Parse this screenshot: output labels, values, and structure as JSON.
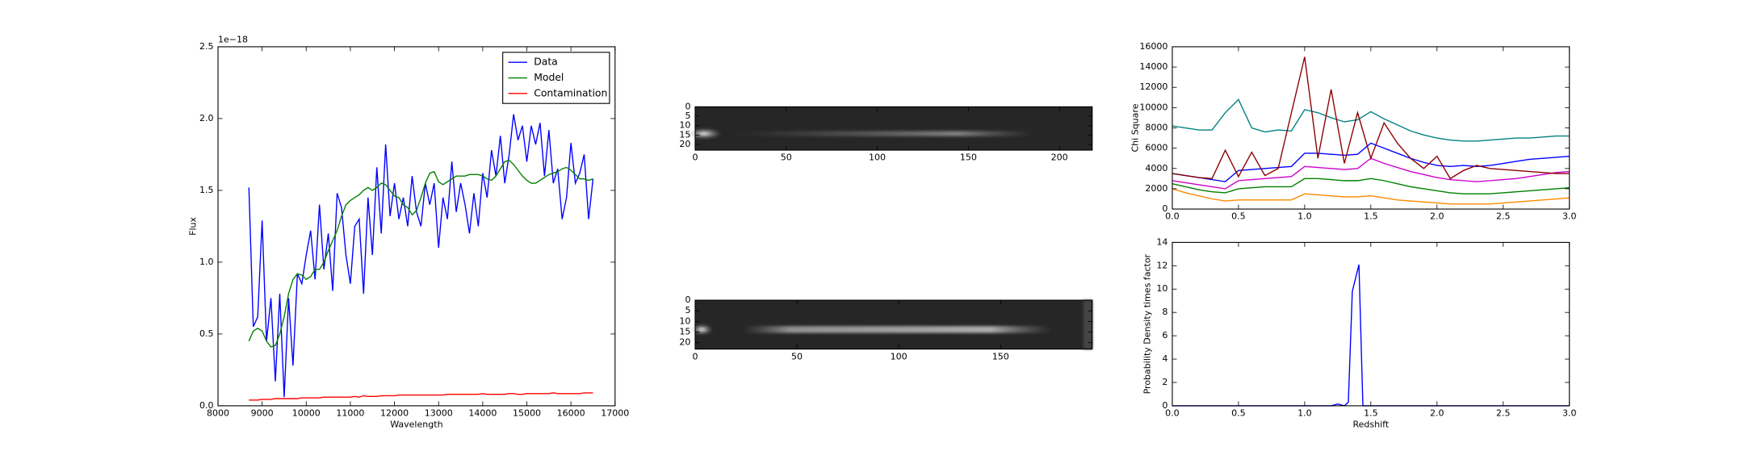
{
  "chart_data": [
    {
      "type": "line",
      "x_label": "Wavelength",
      "y_label": "Flux",
      "y_offset_label": "1e−18",
      "x": [
        8700,
        8800,
        8900,
        9000,
        9100,
        9200,
        9300,
        9400,
        9500,
        9600,
        9700,
        9800,
        9900,
        10000,
        10100,
        10200,
        10300,
        10400,
        10500,
        10600,
        10700,
        10800,
        10900,
        11000,
        11100,
        11200,
        11300,
        11400,
        11500,
        11600,
        11700,
        11800,
        11900,
        12000,
        12100,
        12200,
        12300,
        12400,
        12500,
        12600,
        12700,
        12800,
        12900,
        13000,
        13100,
        13200,
        13300,
        13400,
        13500,
        13600,
        13700,
        13800,
        13900,
        14000,
        14100,
        14200,
        14300,
        14400,
        14500,
        14600,
        14700,
        14800,
        14900,
        15000,
        15100,
        15200,
        15300,
        15400,
        15500,
        15600,
        15700,
        15800,
        15900,
        16000,
        16100,
        16200,
        16300,
        16400,
        16500
      ],
      "series": [
        {
          "name": "Data",
          "color": "#0000ff",
          "values": [
            1.52,
            0.55,
            0.62,
            1.29,
            0.45,
            0.75,
            0.17,
            0.78,
            0.06,
            0.75,
            0.28,
            0.92,
            0.85,
            1.05,
            1.22,
            0.88,
            1.4,
            0.95,
            1.2,
            0.8,
            1.48,
            1.38,
            1.05,
            0.85,
            1.25,
            1.3,
            0.78,
            1.45,
            1.05,
            1.66,
            1.2,
            1.82,
            1.32,
            1.55,
            1.3,
            1.45,
            1.25,
            1.6,
            1.35,
            1.25,
            1.55,
            1.4,
            1.55,
            1.1,
            1.45,
            1.3,
            1.7,
            1.35,
            1.55,
            1.4,
            1.2,
            1.48,
            1.25,
            1.62,
            1.45,
            1.78,
            1.6,
            1.88,
            1.55,
            1.75,
            2.03,
            1.85,
            1.95,
            1.7,
            1.95,
            1.82,
            1.97,
            1.6,
            1.92,
            1.55,
            1.65,
            1.3,
            1.45,
            1.83,
            1.55,
            1.62,
            1.75,
            1.3,
            1.58
          ]
        },
        {
          "name": "Model",
          "color": "#008000",
          "values": [
            0.45,
            0.52,
            0.54,
            0.52,
            0.45,
            0.41,
            0.42,
            0.5,
            0.62,
            0.78,
            0.88,
            0.92,
            0.91,
            0.88,
            0.9,
            0.95,
            0.95,
            1.0,
            1.08,
            1.15,
            1.22,
            1.32,
            1.4,
            1.43,
            1.45,
            1.47,
            1.5,
            1.52,
            1.5,
            1.52,
            1.55,
            1.54,
            1.5,
            1.46,
            1.45,
            1.4,
            1.38,
            1.33,
            1.36,
            1.45,
            1.55,
            1.62,
            1.63,
            1.56,
            1.54,
            1.56,
            1.58,
            1.6,
            1.6,
            1.6,
            1.61,
            1.61,
            1.61,
            1.6,
            1.58,
            1.57,
            1.6,
            1.65,
            1.7,
            1.71,
            1.68,
            1.64,
            1.6,
            1.57,
            1.55,
            1.55,
            1.57,
            1.59,
            1.61,
            1.62,
            1.63,
            1.65,
            1.66,
            1.64,
            1.61,
            1.58,
            1.58,
            1.57,
            1.58
          ]
        },
        {
          "name": "Contamination",
          "color": "#ff0000",
          "values": [
            0.04,
            0.04,
            0.04,
            0.045,
            0.045,
            0.045,
            0.05,
            0.05,
            0.05,
            0.05,
            0.05,
            0.05,
            0.055,
            0.055,
            0.055,
            0.055,
            0.055,
            0.06,
            0.06,
            0.06,
            0.06,
            0.06,
            0.06,
            0.06,
            0.065,
            0.06,
            0.07,
            0.065,
            0.065,
            0.065,
            0.07,
            0.07,
            0.07,
            0.07,
            0.075,
            0.075,
            0.075,
            0.075,
            0.075,
            0.075,
            0.075,
            0.075,
            0.075,
            0.075,
            0.075,
            0.08,
            0.08,
            0.08,
            0.08,
            0.08,
            0.08,
            0.08,
            0.08,
            0.085,
            0.08,
            0.08,
            0.08,
            0.08,
            0.08,
            0.085,
            0.085,
            0.08,
            0.08,
            0.085,
            0.085,
            0.085,
            0.085,
            0.085,
            0.085,
            0.09,
            0.085,
            0.085,
            0.085,
            0.085,
            0.085,
            0.085,
            0.09,
            0.09,
            0.09
          ]
        }
      ],
      "xlim": [
        8000,
        17000
      ],
      "xticks": [
        8000,
        9000,
        10000,
        11000,
        12000,
        13000,
        14000,
        15000,
        16000,
        17000
      ],
      "ylim": [
        0,
        2.5
      ],
      "yticks": [
        {
          "value": 0,
          "label": "0.0"
        },
        0.5,
        {
          "value": 1,
          "label": "1.0"
        },
        1.5,
        {
          "value": 2,
          "label": "2.0"
        },
        2.5
      ],
      "legend": "upper right"
    },
    {
      "type": "image",
      "xlim": [
        0,
        218
      ],
      "xticks": [
        0,
        50,
        100,
        150,
        200
      ],
      "ylim": [
        23,
        0
      ],
      "yticks": [
        0,
        5,
        10,
        15,
        20
      ]
    },
    {
      "type": "image",
      "xlim": [
        0,
        195
      ],
      "xticks": [
        0,
        50,
        100,
        150
      ],
      "ylim": [
        23,
        0
      ],
      "yticks": [
        0,
        5,
        10,
        15,
        20
      ]
    },
    {
      "type": "line",
      "y_label": "Chi Square",
      "x": [
        0,
        0.1,
        0.2,
        0.3,
        0.4,
        0.5,
        0.6,
        0.7,
        0.8,
        0.9,
        1.0,
        1.1,
        1.2,
        1.3,
        1.4,
        1.5,
        1.6,
        1.7,
        1.8,
        1.9,
        2.0,
        2.1,
        2.2,
        2.3,
        2.4,
        2.5,
        2.6,
        2.7,
        2.8,
        2.9,
        3.0
      ],
      "series": [
        {
          "color": "#008080",
          "values": [
            8200,
            8000,
            7800,
            7800,
            9500,
            10800,
            8000,
            7600,
            7800,
            7700,
            9800,
            9500,
            9000,
            8600,
            8800,
            9600,
            8900,
            8300,
            7700,
            7300,
            7000,
            6800,
            6700,
            6700,
            6800,
            6900,
            7000,
            7000,
            7100,
            7200,
            7200
          ]
        },
        {
          "color": "#0000ff",
          "values": [
            3500,
            3300,
            3100,
            2900,
            2700,
            3800,
            3900,
            4000,
            4100,
            4200,
            5500,
            5500,
            5400,
            5300,
            5400,
            6500,
            6000,
            5500,
            5000,
            4600,
            4300,
            4200,
            4300,
            4200,
            4300,
            4500,
            4700,
            4900,
            5000,
            5100,
            5200
          ]
        },
        {
          "color": "#cc00cc",
          "values": [
            2800,
            2600,
            2400,
            2200,
            2000,
            2800,
            2900,
            3000,
            3100,
            3200,
            4200,
            4100,
            4000,
            3900,
            4000,
            5000,
            4500,
            4100,
            3700,
            3400,
            3100,
            2900,
            2800,
            2700,
            2800,
            2900,
            3000,
            3200,
            3400,
            3600,
            3700
          ]
        },
        {
          "color": "#008000",
          "values": [
            2500,
            2200,
            1900,
            1700,
            1600,
            2000,
            2100,
            2200,
            2200,
            2200,
            3000,
            3000,
            2900,
            2800,
            2800,
            3000,
            2800,
            2500,
            2200,
            2000,
            1800,
            1600,
            1500,
            1500,
            1500,
            1600,
            1700,
            1800,
            1900,
            2000,
            2100
          ]
        },
        {
          "color": "#ff8800",
          "values": [
            2000,
            1600,
            1300,
            1000,
            800,
            900,
            900,
            900,
            900,
            900,
            1500,
            1400,
            1300,
            1200,
            1200,
            1300,
            1100,
            900,
            800,
            700,
            600,
            500,
            500,
            500,
            500,
            600,
            700,
            800,
            900,
            1000,
            1100
          ]
        },
        {
          "color": "#8b0000",
          "values": [
            3500,
            3300,
            3100,
            3000,
            5800,
            3200,
            5600,
            3300,
            4000,
            9500,
            15000,
            5000,
            11800,
            4500,
            9500,
            5000,
            8500,
            6500,
            5000,
            4000,
            5200,
            3000,
            3800,
            4300,
            4000,
            3900,
            3800,
            3700,
            3600,
            3500,
            3500
          ]
        }
      ],
      "xlim": [
        0,
        3
      ],
      "xticks": [
        {
          "value": 0,
          "label": "0.0"
        },
        0.5,
        {
          "value": 1,
          "label": "1.0"
        },
        1.5,
        {
          "value": 2,
          "label": "2.0"
        },
        2.5,
        {
          "value": 3,
          "label": "3.0"
        }
      ],
      "ylim": [
        0,
        16000
      ],
      "yticks": [
        0,
        2000,
        4000,
        6000,
        8000,
        10000,
        12000,
        14000,
        16000
      ]
    },
    {
      "type": "line",
      "x_label": "Redshift",
      "y_label": "Probability Density times factor",
      "x": [
        0,
        1.2,
        1.25,
        1.3,
        1.33,
        1.36,
        1.41,
        1.44,
        3.0
      ],
      "series": [
        {
          "color": "#0000ff",
          "values": [
            0,
            0,
            0.15,
            0,
            0.3,
            9.8,
            12.1,
            0,
            0
          ]
        }
      ],
      "xlim": [
        0,
        3
      ],
      "xticks": [
        {
          "value": 0,
          "label": "0.0"
        },
        0.5,
        {
          "value": 1,
          "label": "1.0"
        },
        1.5,
        {
          "value": 2,
          "label": "2.0"
        },
        2.5,
        {
          "value": 3,
          "label": "3.0"
        }
      ],
      "ylim": [
        0,
        14
      ],
      "yticks": [
        0,
        2,
        4,
        6,
        8,
        10,
        12,
        14
      ]
    }
  ]
}
